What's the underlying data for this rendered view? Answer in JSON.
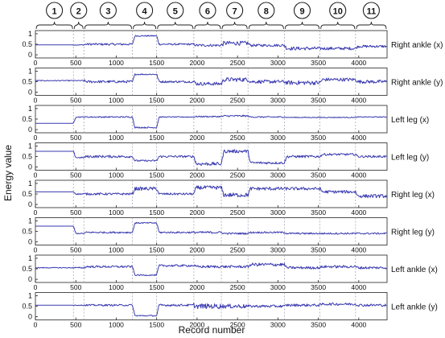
{
  "chart_data": {
    "type": "line",
    "xlabel": "Record number",
    "ylabel": "Energy value",
    "xlim": [
      0,
      4350
    ],
    "ylim": [
      -0.15,
      1.15
    ],
    "x_ticks": [
      0,
      500,
      1000,
      1500,
      2000,
      2500,
      3000,
      3500,
      4000
    ],
    "y_ticks": [
      0,
      0.5,
      1
    ],
    "grid": false,
    "series_color": "#3a3ab0",
    "segment_divider_color": "#9a9ab0",
    "segment_boundaries": [
      470,
      600,
      1200,
      1500,
      1960,
      2300,
      2630,
      3080,
      3520,
      3960
    ],
    "segments": [
      {
        "label": "1",
        "start": 0,
        "end": 470
      },
      {
        "label": "2",
        "start": 470,
        "end": 600
      },
      {
        "label": "3",
        "start": 600,
        "end": 1200
      },
      {
        "label": "4",
        "start": 1200,
        "end": 1500
      },
      {
        "label": "5",
        "start": 1500,
        "end": 1960
      },
      {
        "label": "6",
        "start": 1960,
        "end": 2300
      },
      {
        "label": "7",
        "start": 2300,
        "end": 2630
      },
      {
        "label": "8",
        "start": 2630,
        "end": 3080
      },
      {
        "label": "9",
        "start": 3080,
        "end": 3520
      },
      {
        "label": "10",
        "start": 3520,
        "end": 3960
      },
      {
        "label": "11",
        "start": 3960,
        "end": 4350
      }
    ],
    "panels": [
      {
        "name": "Right ankle (x)",
        "levels": [
          0.47,
          0.47,
          0.5,
          0.9,
          0.5,
          0.45,
          0.55,
          0.45,
          0.3,
          0.3,
          0.4
        ],
        "noise": [
          0.0,
          0.02,
          0.05,
          0.03,
          0.04,
          0.06,
          0.1,
          0.06,
          0.08,
          0.07,
          0.06
        ]
      },
      {
        "name": "Right ankle (y)",
        "levels": [
          0.55,
          0.55,
          0.5,
          0.85,
          0.5,
          0.4,
          0.6,
          0.5,
          0.45,
          0.6,
          0.5
        ],
        "noise": [
          0.02,
          0.02,
          0.06,
          0.03,
          0.05,
          0.08,
          0.1,
          0.08,
          0.1,
          0.08,
          0.08
        ]
      },
      {
        "name": "Left leg (x)",
        "levels": [
          0.3,
          0.6,
          0.6,
          0.1,
          0.6,
          0.62,
          0.65,
          0.6,
          0.58,
          0.58,
          0.6
        ],
        "noise": [
          0.0,
          0.02,
          0.03,
          0.03,
          0.02,
          0.03,
          0.04,
          0.03,
          0.02,
          0.02,
          0.02
        ]
      },
      {
        "name": "Left leg (y)",
        "levels": [
          0.75,
          0.45,
          0.5,
          0.3,
          0.5,
          0.15,
          0.75,
          0.2,
          0.5,
          0.6,
          0.5
        ],
        "noise": [
          0.0,
          0.03,
          0.06,
          0.04,
          0.05,
          0.08,
          0.08,
          0.06,
          0.06,
          0.05,
          0.05
        ]
      },
      {
        "name": "Right leg (x)",
        "levels": [
          0.6,
          0.5,
          0.5,
          0.75,
          0.5,
          0.8,
          0.45,
          0.75,
          0.75,
          0.6,
          0.4
        ],
        "noise": [
          0.0,
          0.03,
          0.05,
          0.08,
          0.05,
          0.09,
          0.1,
          0.08,
          0.07,
          0.07,
          0.08
        ]
      },
      {
        "name": "Right leg (y)",
        "levels": [
          0.75,
          0.4,
          0.45,
          0.9,
          0.45,
          0.45,
          0.4,
          0.45,
          0.4,
          0.4,
          0.4
        ],
        "noise": [
          0.0,
          0.02,
          0.04,
          0.03,
          0.04,
          0.05,
          0.04,
          0.04,
          0.04,
          0.04,
          0.04
        ]
      },
      {
        "name": "Left ankle (x)",
        "levels": [
          0.55,
          0.55,
          0.6,
          0.2,
          0.65,
          0.6,
          0.6,
          0.7,
          0.55,
          0.6,
          0.55
        ],
        "noise": [
          0.02,
          0.03,
          0.05,
          0.03,
          0.05,
          0.06,
          0.06,
          0.08,
          0.06,
          0.06,
          0.06
        ]
      },
      {
        "name": "Left ankle (y)",
        "levels": [
          0.55,
          0.55,
          0.55,
          0.05,
          0.55,
          0.5,
          0.5,
          0.5,
          0.55,
          0.6,
          0.55
        ],
        "noise": [
          0.0,
          0.02,
          0.04,
          0.03,
          0.05,
          0.12,
          0.1,
          0.06,
          0.06,
          0.06,
          0.06
        ]
      }
    ]
  }
}
